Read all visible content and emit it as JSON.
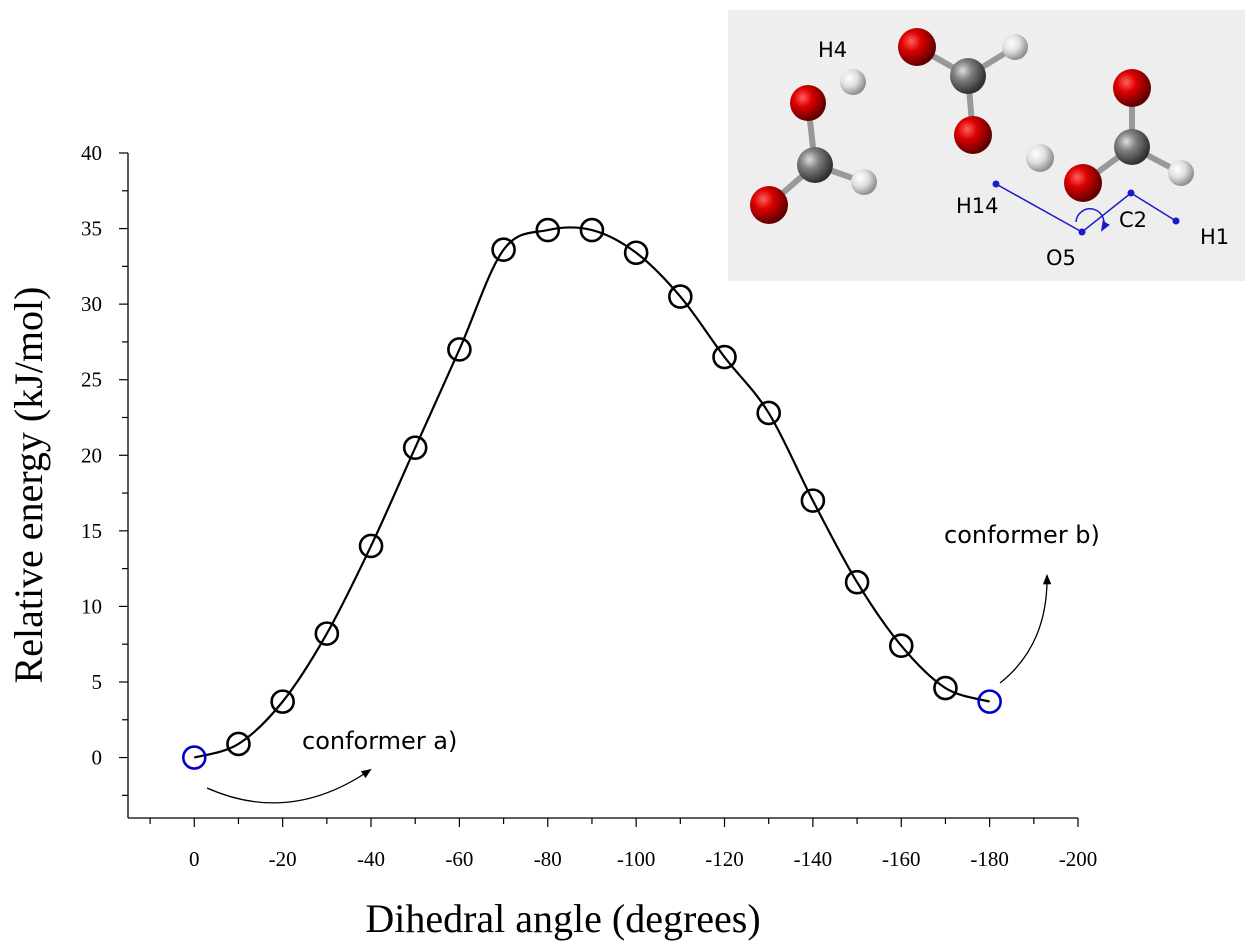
{
  "chart_data": {
    "type": "line",
    "x_label": "Dihedral angle (degrees)",
    "y_label": "Relative energy (kJ/mol)",
    "x": [
      0,
      -10,
      -20,
      -30,
      -40,
      -50,
      -60,
      -70,
      -80,
      -90,
      -100,
      -110,
      -120,
      -130,
      -140,
      -150,
      -160,
      -170,
      -180
    ],
    "values": [
      0,
      0.9,
      3.7,
      8.2,
      14,
      20.5,
      27,
      33.6,
      34.9,
      34.9,
      33.4,
      30.5,
      26.5,
      22.8,
      17,
      11.6,
      7.4,
      4.6,
      3.7
    ],
    "line_color": "#000000",
    "marker_colors": [
      "#0000cc",
      "#000000",
      "#000000",
      "#000000",
      "#000000",
      "#000000",
      "#000000",
      "#000000",
      "#000000",
      "#000000",
      "#000000",
      "#000000",
      "#000000",
      "#000000",
      "#000000",
      "#000000",
      "#000000",
      "#000000",
      "#0000cc"
    ],
    "xlim": [
      15,
      -200
    ],
    "xticks": [
      0,
      -20,
      -40,
      -60,
      -80,
      -100,
      -120,
      -140,
      -160,
      -180,
      -200
    ],
    "xminorticks": [
      10,
      -10,
      -30,
      -50,
      -70,
      -90,
      -110,
      -130,
      -150,
      -170,
      -190
    ],
    "ylim": [
      -4,
      40
    ],
    "yticks": [
      0,
      5,
      10,
      15,
      20,
      25,
      30,
      35,
      40
    ],
    "yminorticks": [
      -2.5,
      2.5,
      7.5,
      12.5,
      17.5,
      22.5,
      27.5,
      32.5,
      37.5
    ],
    "annotations": [
      {
        "text": "conformer a)"
      },
      {
        "text": "conformer b)"
      }
    ]
  },
  "inset": {
    "labels": [
      "H4",
      "H14",
      "C2",
      "H1",
      "O5"
    ]
  }
}
